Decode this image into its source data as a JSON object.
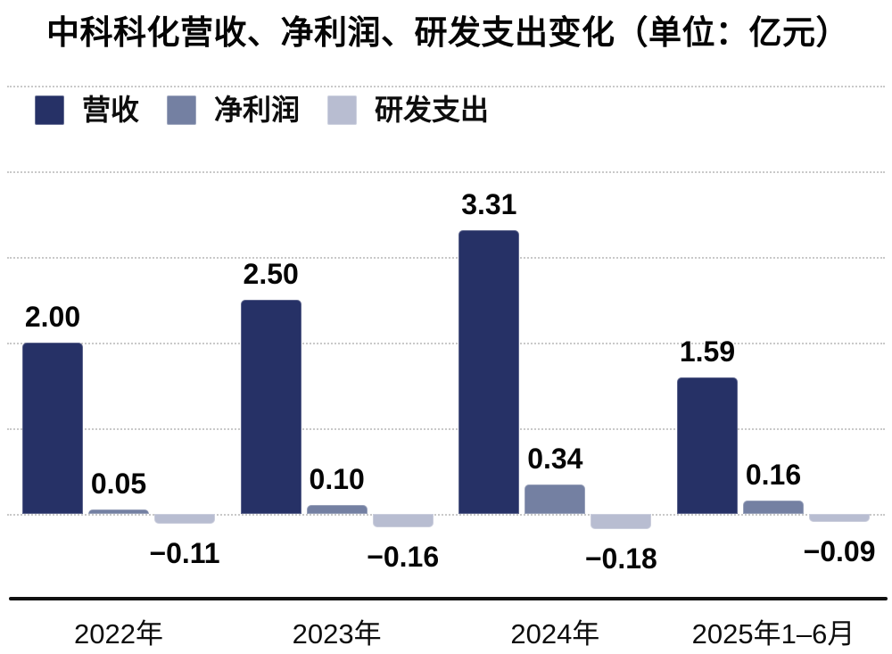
{
  "title": "中科科化营收、净利润、研发支出变化（单位：亿元）",
  "colors": {
    "revenue": "#263166",
    "net_profit": "#7480a2",
    "rnd_spend": "#b8bdd1",
    "gridline": "#c9c9c9",
    "axis": "#101010",
    "text": "#0a0a0a"
  },
  "legend": {
    "items": [
      "营收",
      "净利润",
      "研发支出"
    ]
  },
  "chart_data": {
    "type": "bar",
    "title": "中科科化营收、净利润、研发支出变化（单位：亿元）",
    "unit": "亿元",
    "categories": [
      "2022年",
      "2023年",
      "2024年",
      "2025年1–6月"
    ],
    "series": [
      {
        "name": "营收",
        "color_key": "revenue",
        "values": [
          2.0,
          2.5,
          3.31,
          1.59
        ],
        "labels": [
          "2.00",
          "2.50",
          "3.31",
          "1.59"
        ]
      },
      {
        "name": "净利润",
        "color_key": "net_profit",
        "values": [
          0.05,
          0.1,
          0.34,
          0.16
        ],
        "labels": [
          "0.05",
          "0.10",
          "0.34",
          "0.16"
        ]
      },
      {
        "name": "研发支出",
        "color_key": "rnd_spend",
        "values": [
          -0.11,
          -0.16,
          -0.18,
          -0.09
        ],
        "labels": [
          "−0.11",
          "−0.16",
          "−0.18",
          "−0.09"
        ]
      }
    ],
    "ylim": [
      -1,
      5
    ],
    "gridline_values": [
      0,
      1,
      2,
      3,
      4,
      5
    ],
    "grid": true,
    "legend_position": "top-left",
    "value_labels": true,
    "y_tick_labels_shown": false
  }
}
